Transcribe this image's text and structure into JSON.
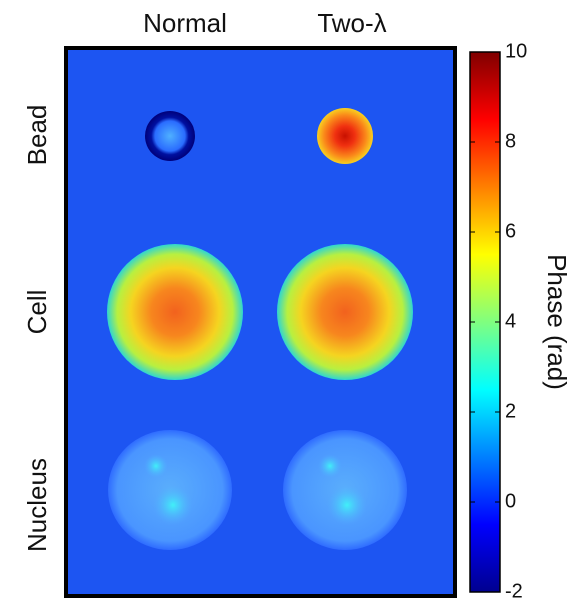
{
  "chart_data": {
    "type": "image",
    "columns": [
      "Normal",
      "Two-λ"
    ],
    "rows": [
      "Bead",
      "Cell",
      "Nucleus"
    ],
    "colorbar": {
      "label": "Phase (rad)",
      "lim": [
        -2,
        10
      ],
      "ticks": [
        -2,
        0,
        2,
        4,
        6,
        8,
        10
      ],
      "colormap": "jet"
    }
  }
}
